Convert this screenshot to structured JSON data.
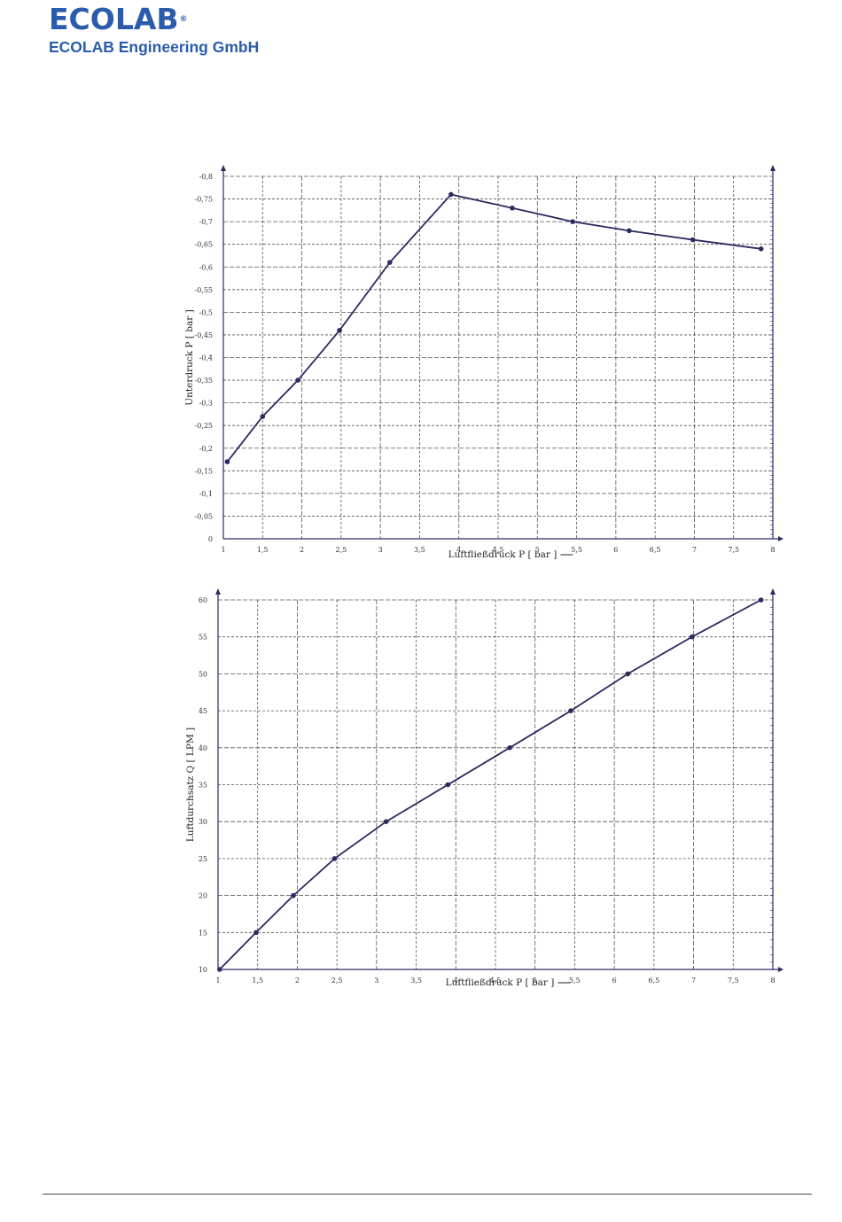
{
  "header": {
    "logo_text": "ECOLAB",
    "logo_mark": "®",
    "company": "ECOLAB Engineering GmbH"
  },
  "colors": {
    "brand": "#2b5cab",
    "series": "#2b2b60",
    "grid": "#555555"
  },
  "chart_data": [
    {
      "type": "line",
      "title": "",
      "xlabel": "Luftfließdruck P [ bar ]",
      "ylabel": "Unterdruck P [ bar ]",
      "xlim": [
        1,
        8
      ],
      "ylim": [
        0,
        -0.8
      ],
      "x_ticks": [
        "1",
        "1,5",
        "2",
        "2,5",
        "3",
        "3,5",
        "4",
        "4,5",
        "5",
        "5,5",
        "6",
        "6,5",
        "7",
        "7,5",
        "8"
      ],
      "y_ticks": [
        "0",
        "-0,05",
        "-0,1",
        "-0,15",
        "-0,2",
        "-0,25",
        "-0,3",
        "-0,35",
        "-0,4",
        "-0,45",
        "-0,5",
        "-0,55",
        "-0,6",
        "-0,65",
        "-0,7",
        "-0,75",
        "-0,8"
      ],
      "grid": true,
      "x": [
        1.05,
        1.5,
        1.95,
        2.48,
        3.12,
        3.9,
        4.68,
        5.45,
        6.17,
        6.98,
        7.85
      ],
      "y": [
        -0.17,
        -0.27,
        -0.35,
        -0.46,
        -0.61,
        -0.76,
        -0.73,
        -0.7,
        -0.68,
        -0.66,
        -0.64
      ]
    },
    {
      "type": "line",
      "title": "",
      "xlabel": "Luftfließdruck P [ bar ]",
      "ylabel": "Luftdurchsatz Q [ LPM ]",
      "xlim": [
        1,
        8
      ],
      "ylim": [
        10,
        60
      ],
      "x_ticks": [
        "1",
        "1,5",
        "2",
        "2,5",
        "3",
        "3,5",
        "4",
        "4,5",
        "5",
        "5,5",
        "6",
        "6,5",
        "7",
        "7,5",
        "8"
      ],
      "y_ticks": [
        "10",
        "15",
        "20",
        "25",
        "30",
        "35",
        "40",
        "45",
        "50",
        "55",
        "60"
      ],
      "grid": true,
      "x": [
        1.02,
        1.48,
        1.95,
        2.47,
        3.12,
        3.9,
        4.68,
        5.45,
        6.17,
        6.98,
        7.85
      ],
      "y": [
        10,
        15,
        20,
        25,
        30,
        35,
        40,
        45,
        50,
        55,
        60
      ]
    }
  ]
}
